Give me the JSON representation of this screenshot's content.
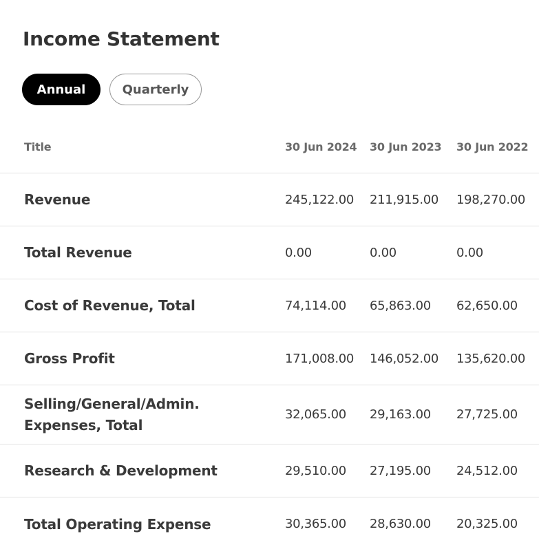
{
  "page": {
    "title": "Income Statement"
  },
  "period_toggle": {
    "options": [
      {
        "label": "Annual",
        "active": true
      },
      {
        "label": "Quarterly",
        "active": false
      }
    ]
  },
  "table": {
    "headers": {
      "title": "Title",
      "periods": [
        "30 Jun 2024",
        "30 Jun 2023",
        "30 Jun 2022"
      ]
    },
    "rows": [
      {
        "label": "Revenue",
        "values": [
          "245,122.00",
          "211,915.00",
          "198,270.00"
        ]
      },
      {
        "label": "Total Revenue",
        "values": [
          "0.00",
          "0.00",
          "0.00"
        ]
      },
      {
        "label": "Cost of Revenue, Total",
        "values": [
          "74,114.00",
          "65,863.00",
          "62,650.00"
        ]
      },
      {
        "label": "Gross Profit",
        "values": [
          "171,008.00",
          "146,052.00",
          "135,620.00"
        ]
      },
      {
        "label": "Selling/General/Admin. Expenses, Total",
        "values": [
          "32,065.00",
          "29,163.00",
          "27,725.00"
        ]
      },
      {
        "label": "Research & Development",
        "values": [
          "29,510.00",
          "27,195.00",
          "24,512.00"
        ]
      },
      {
        "label": "Total Operating Expense",
        "values": [
          "30,365.00",
          "28,630.00",
          "20,325.00"
        ]
      }
    ]
  }
}
